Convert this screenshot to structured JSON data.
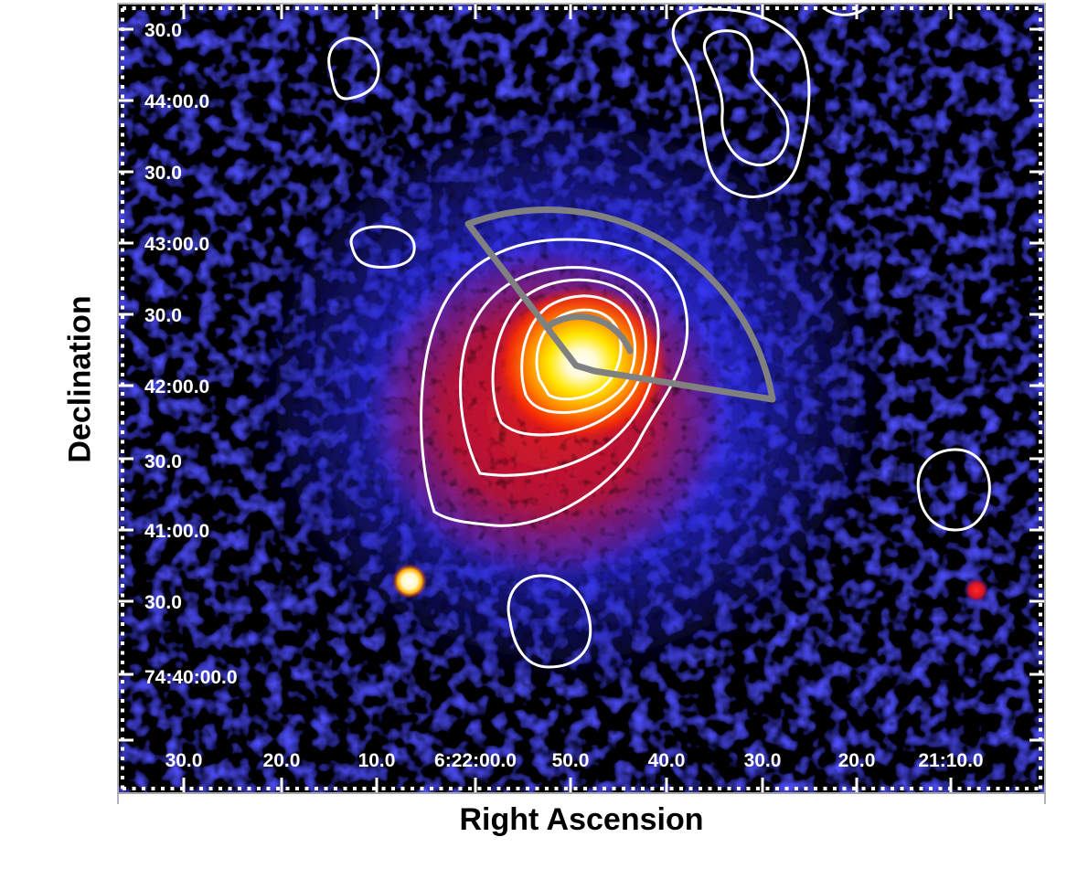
{
  "figure": {
    "xlabel": "Right Ascension",
    "ylabel": "Declination",
    "colormap": [
      "#000000",
      "#1414c8",
      "#3a3aff",
      "#d01010",
      "#ff6a00",
      "#ffe000",
      "#ffffff"
    ],
    "contour_color": "#ffffff",
    "wedge_color": "#808080"
  },
  "axes": {
    "x_ticks": [
      "30.0",
      "20.0",
      "10.0",
      "6:22:00.0",
      "50.0",
      "40.0",
      "30.0",
      "20.0",
      "21:10.0"
    ],
    "y_ticks": [
      "30.0",
      "44:00.0",
      "30.0",
      "43:00.0",
      "30.0",
      "42:00.0",
      "30.0",
      "41:00.0",
      "30.0",
      "74:40:00.0"
    ]
  },
  "features": {
    "cluster_emission": "bright-core",
    "point_sources": [
      "left-point-source",
      "right-point-source"
    ],
    "region": "sector-wedge"
  }
}
